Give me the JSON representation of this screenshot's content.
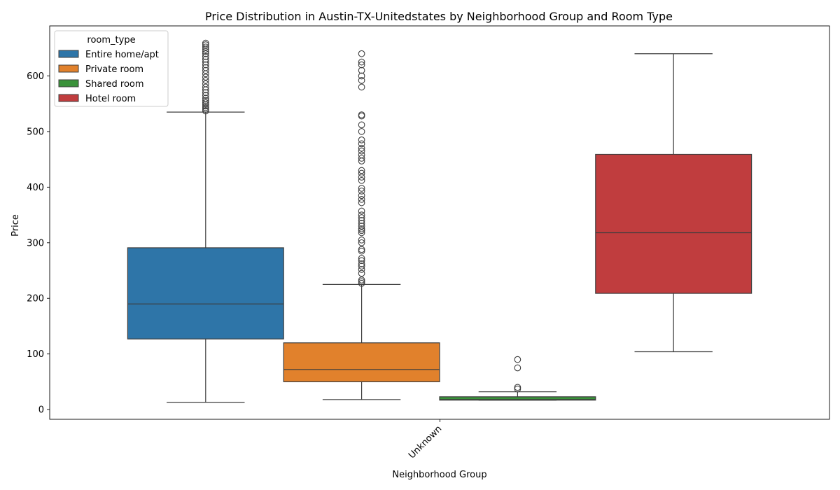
{
  "chart_data": {
    "type": "box",
    "title": "Price Distribution in Austin-TX-Unitedstates by Neighborhood Group and Room Type",
    "xlabel": "Neighborhood Group",
    "ylabel": "Price",
    "categories": [
      "Unknown"
    ],
    "ylim": [
      -17.5,
      690
    ],
    "yticks": [
      0,
      100,
      200,
      300,
      400,
      500,
      600
    ],
    "legend": {
      "title": "room_type",
      "placement": "top-left"
    },
    "series": [
      {
        "name": "Entire home/apt",
        "color": "#2e75a8",
        "whisker_low": 13,
        "q1": 127,
        "median": 190,
        "q3": 291,
        "whisker_high": 535,
        "outliers": [
          537,
          540,
          543,
          546,
          549,
          552,
          556,
          560,
          565,
          570,
          575,
          580,
          586,
          592,
          598,
          604,
          610,
          615,
          620,
          625,
          630,
          635,
          640,
          644,
          648,
          652,
          656,
          659
        ]
      },
      {
        "name": "Private room",
        "color": "#e1812c",
        "whisker_low": 18,
        "q1": 50,
        "median": 72,
        "q3": 120,
        "whisker_high": 225,
        "outliers": [
          227,
          230,
          233,
          245,
          252,
          258,
          262,
          268,
          272,
          285,
          288,
          300,
          305,
          318,
          322,
          325,
          330,
          335,
          340,
          345,
          350,
          357,
          372,
          378,
          385,
          393,
          398,
          412,
          418,
          425,
          430,
          447,
          452,
          458,
          465,
          470,
          478,
          485,
          500,
          512,
          528,
          530,
          580,
          592,
          600,
          610,
          620,
          625,
          640
        ]
      },
      {
        "name": "Shared room",
        "color": "#3a923a",
        "whisker_low": 17,
        "q1": 17,
        "median": 18,
        "q3": 23,
        "whisker_high": 32,
        "outliers": [
          37,
          40,
          75,
          90
        ]
      },
      {
        "name": "Hotel room",
        "color": "#c03d3e",
        "whisker_low": 104,
        "q1": 209,
        "median": 318,
        "q3": 459,
        "whisker_high": 640,
        "outliers": []
      }
    ]
  }
}
